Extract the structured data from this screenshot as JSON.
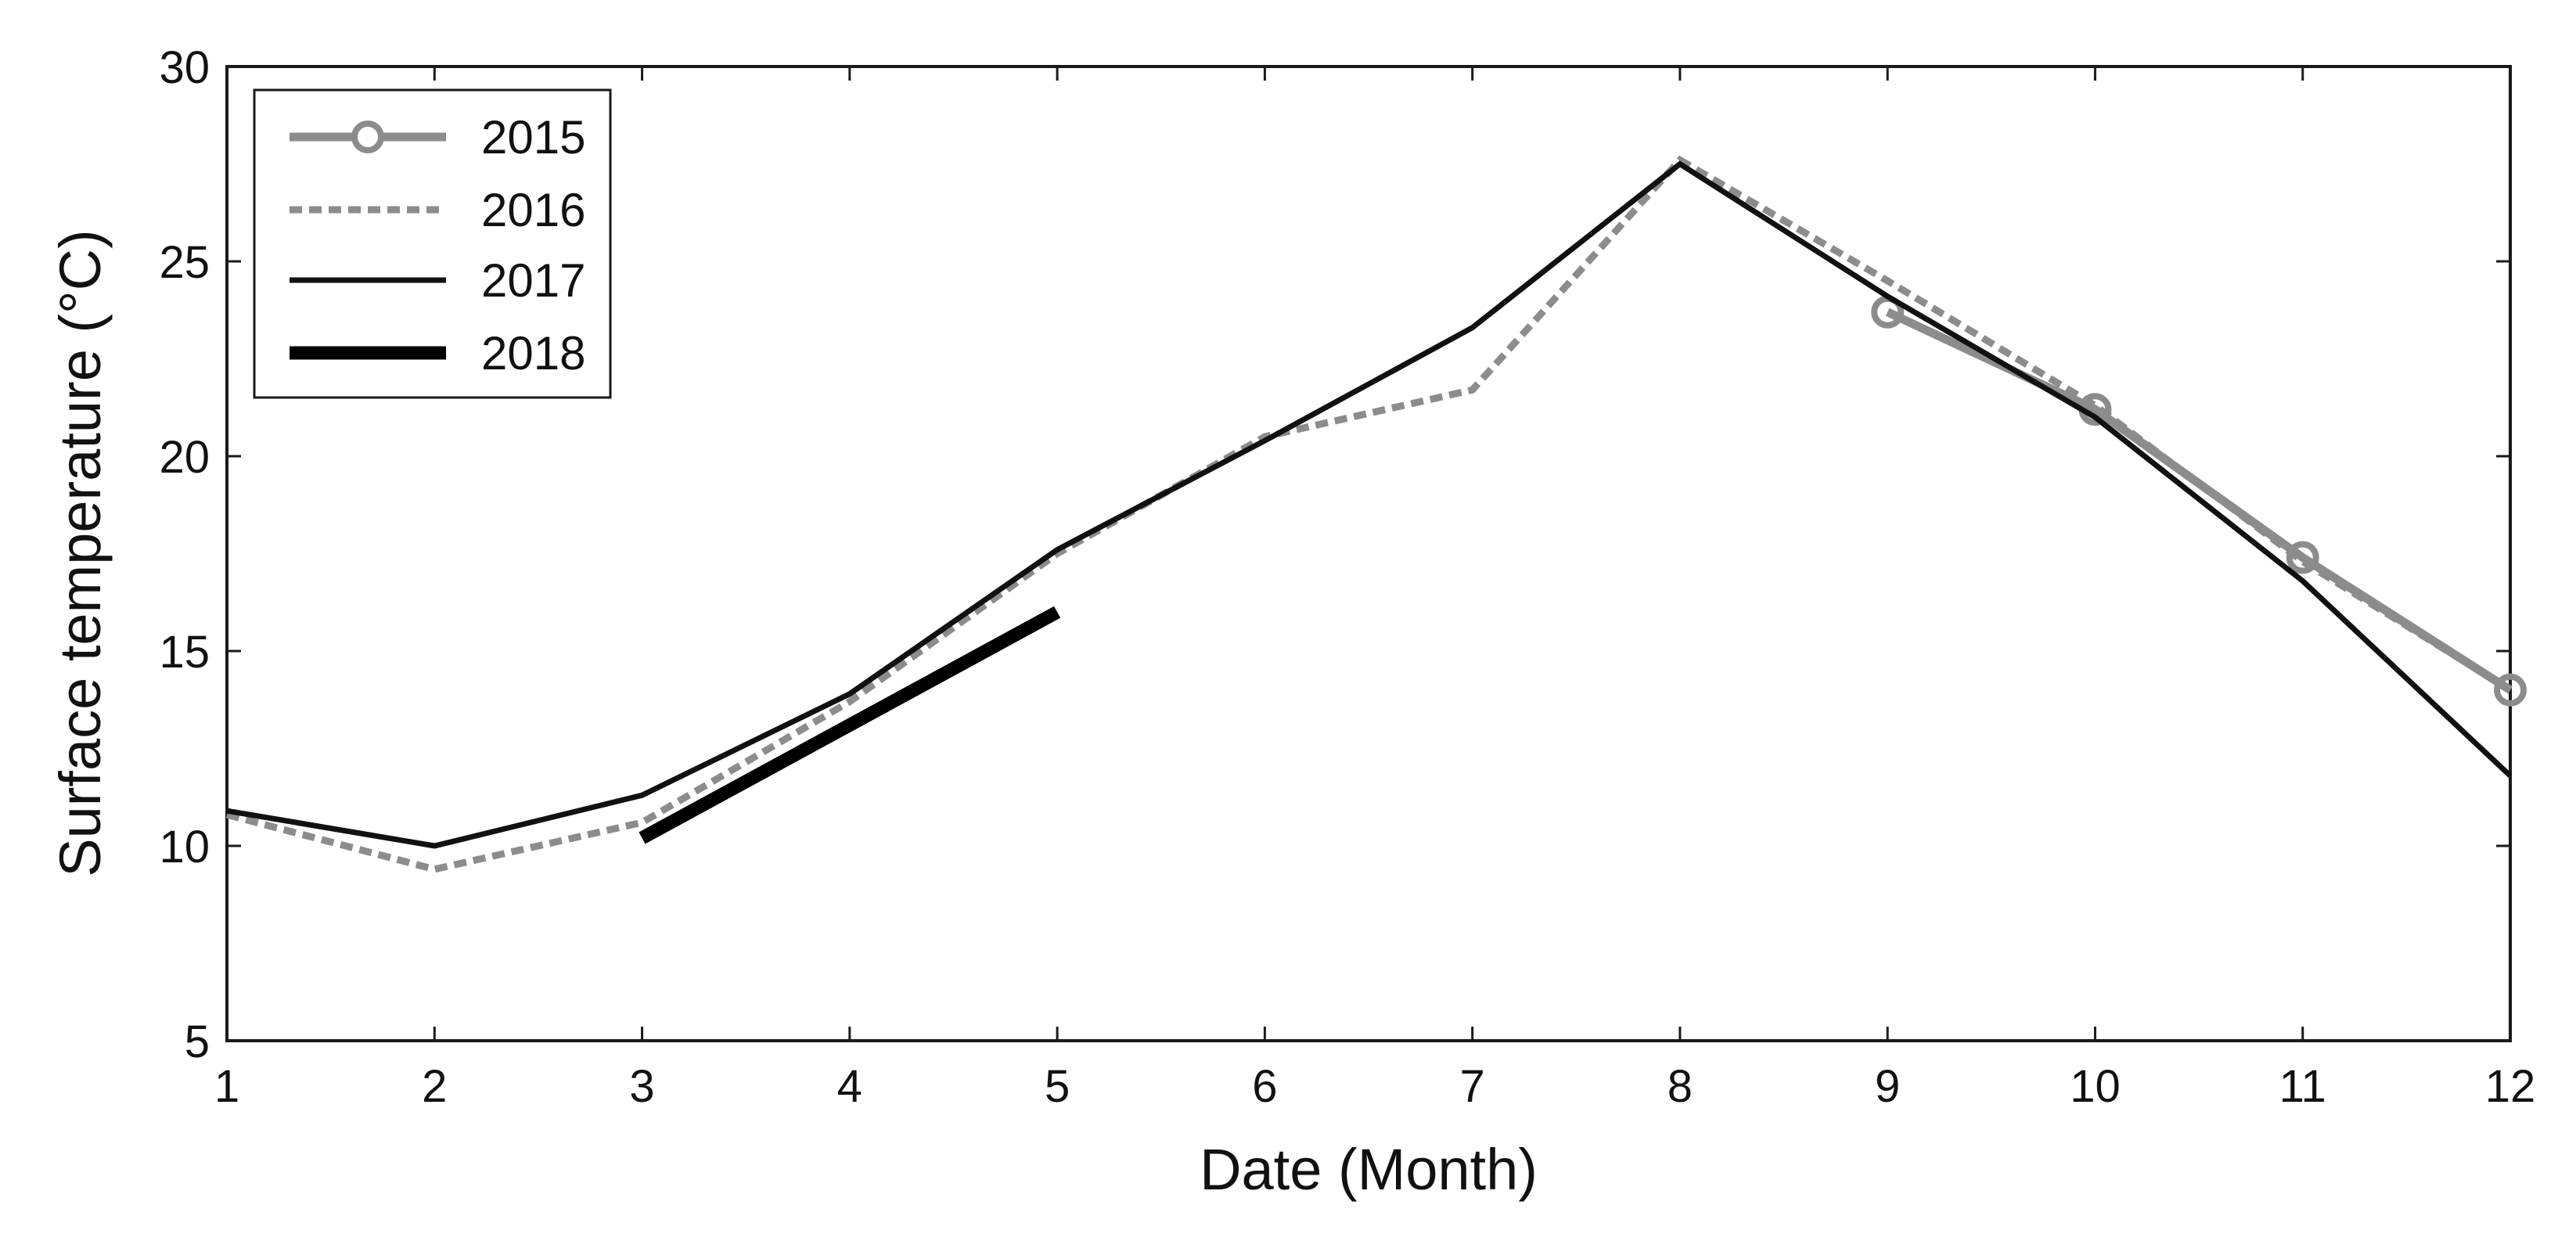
{
  "chart_data": {
    "type": "line",
    "title": "",
    "xlabel": "Date (Month)",
    "ylabel": "Surface temperature (°C)",
    "xlim": [
      1,
      12
    ],
    "ylim": [
      5,
      30
    ],
    "xticks": [
      1,
      2,
      3,
      4,
      5,
      6,
      7,
      8,
      9,
      10,
      11,
      12
    ],
    "yticks": [
      5,
      10,
      15,
      20,
      25,
      30
    ],
    "grid": false,
    "legend_position": "top-left",
    "series": [
      {
        "name": "2015",
        "style": "solid-with-circle-markers",
        "color": "#8c8c8c",
        "x": [
          9,
          10,
          11,
          12
        ],
        "y": [
          23.7,
          21.2,
          17.4,
          14.0
        ]
      },
      {
        "name": "2016",
        "style": "dashed",
        "color": "#8c8c8c",
        "x": [
          1,
          2,
          3,
          4,
          5,
          6,
          7,
          8,
          9,
          10,
          11,
          12
        ],
        "y": [
          10.8,
          9.4,
          10.6,
          13.7,
          17.5,
          20.5,
          21.7,
          27.6,
          24.5,
          21.3,
          17.3,
          14.0
        ]
      },
      {
        "name": "2017",
        "style": "solid",
        "color": "#111111",
        "x": [
          1,
          2,
          3,
          4,
          5,
          6,
          7,
          8,
          9,
          10,
          11,
          12
        ],
        "y": [
          10.9,
          10.0,
          11.3,
          13.9,
          17.6,
          20.4,
          23.3,
          27.5,
          24.1,
          21.0,
          16.8,
          11.8
        ]
      },
      {
        "name": "2018",
        "style": "solid-thick",
        "color": "#000000",
        "x": [
          3,
          5
        ],
        "y": [
          10.2,
          16.0
        ]
      }
    ]
  }
}
